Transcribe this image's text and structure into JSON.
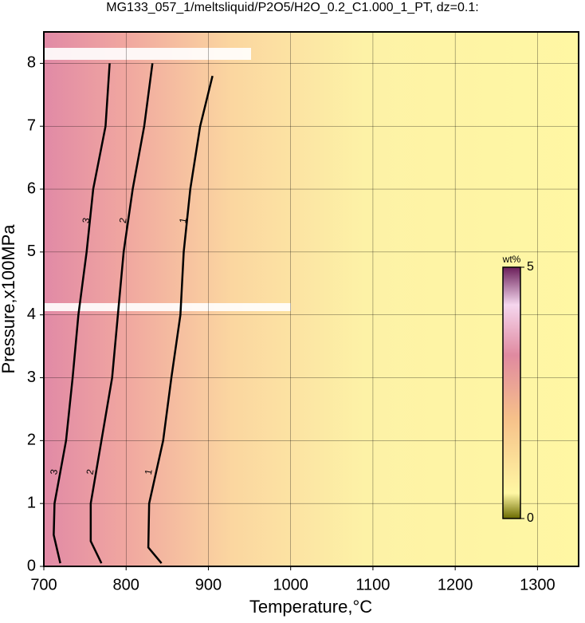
{
  "chart_data": {
    "type": "contour",
    "title": "MG133_057_1/meltsliquid/P2O5/H2O_0.2_C1.000_1_PT, dz=0.1:",
    "x_label": "Temperature,°C",
    "y_label": "Pressure,x100MPa",
    "xlim": [
      700,
      1350
    ],
    "ylim": [
      0,
      8.5
    ],
    "xticks": [
      700,
      800,
      900,
      1000,
      1100,
      1200,
      1300
    ],
    "yticks": [
      0,
      1,
      2,
      3,
      4,
      5,
      6,
      7,
      8
    ],
    "grid": true,
    "series": [
      {
        "level": 1,
        "color": "#000000",
        "x": [
          843,
          827,
          828,
          845,
          855,
          866,
          870,
          878,
          890,
          905
        ],
        "y": [
          0.05,
          0.3,
          1,
          2,
          3,
          4,
          5,
          6,
          7,
          7.8
        ]
      },
      {
        "level": 2,
        "color": "#000000",
        "x": [
          770,
          757,
          757,
          770,
          783,
          790,
          797,
          808,
          822,
          832
        ],
        "y": [
          0.05,
          0.4,
          1,
          2,
          3,
          4,
          5,
          6,
          7,
          8
        ]
      },
      {
        "level": 3,
        "color": "#000000",
        "x": [
          720,
          712,
          713,
          727,
          735,
          742,
          752,
          760,
          775,
          780
        ],
        "y": [
          0.05,
          0.5,
          1,
          2,
          3,
          4,
          5,
          6,
          7,
          8
        ]
      }
    ],
    "colorbar": {
      "label": "wt%",
      "lim": [
        0,
        5
      ],
      "ticks": [
        0,
        5
      ]
    }
  }
}
